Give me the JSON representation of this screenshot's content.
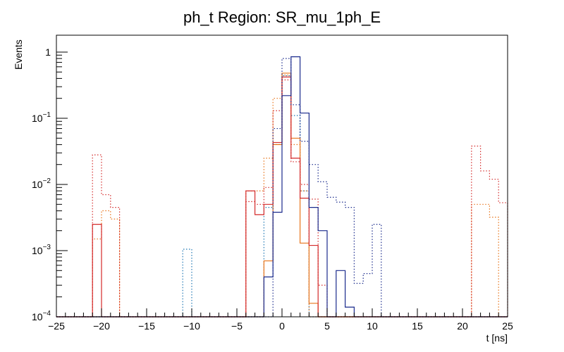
{
  "chart_data": {
    "type": "step-histogram",
    "title": "ph_t Region: SR_mu_1ph_E",
    "xlabel": "t [ns]",
    "ylabel": "Events",
    "xlim": [
      -25,
      25
    ],
    "ylim": [
      0.0001,
      1.8
    ],
    "yscale": "log",
    "bin_width": 1,
    "grid": false,
    "legend": "none",
    "x_ticks": [
      "−25",
      "−20",
      "−15",
      "−10",
      "−5",
      "0",
      "5",
      "10",
      "15",
      "20",
      "25"
    ],
    "y_ticks": [
      {
        "base": "10",
        "exp": "−4",
        "value": 0.0001
      },
      {
        "base": "10",
        "exp": "−3",
        "value": 0.001
      },
      {
        "base": "10",
        "exp": "−2",
        "value": 0.01
      },
      {
        "base": "10",
        "exp": "−1",
        "value": 0.1
      },
      {
        "base": "1",
        "exp": "",
        "value": 1
      }
    ],
    "series": [
      {
        "color": "#1f77b4",
        "style": "dotted",
        "bins": [
          [
            -11,
            0.00105
          ],
          [
            -2,
            0.0045
          ],
          [
            -1,
            0.04
          ],
          [
            0,
            0.44
          ],
          [
            1,
            0.11
          ],
          [
            2,
            0.008
          ]
        ]
      },
      {
        "color": "#e8741a",
        "style": "dotted",
        "bins": [
          [
            -21,
            0.0015
          ],
          [
            -20,
            0.004
          ],
          [
            -19,
            0.003
          ],
          [
            -4,
            0.008
          ],
          [
            -3,
            0.008
          ],
          [
            -2,
            0.025
          ],
          [
            -1,
            0.2
          ],
          [
            0,
            0.45
          ],
          [
            1,
            0.04
          ],
          [
            2,
            0.008
          ],
          [
            21,
            0.005
          ],
          [
            22,
            0.005
          ],
          [
            23,
            0.0032
          ]
        ]
      },
      {
        "color": "#e8741a",
        "style": "solid",
        "bins": [
          [
            -2,
            0.0007
          ],
          [
            -1,
            0.04
          ],
          [
            0,
            0.48
          ],
          [
            1,
            0.05
          ],
          [
            2,
            0.0013
          ],
          [
            3,
            0.00016
          ]
        ]
      },
      {
        "color": "#d42a2a",
        "style": "dotted",
        "bins": [
          [
            -21,
            0.028
          ],
          [
            -20,
            0.007
          ],
          [
            -19,
            0.0045
          ],
          [
            -4,
            0.0055
          ],
          [
            -3,
            0.005
          ],
          [
            -2,
            0.009
          ],
          [
            -1,
            0.13
          ],
          [
            0,
            0.38
          ],
          [
            1,
            0.022
          ],
          [
            2,
            0.01
          ],
          [
            3,
            0.006
          ],
          [
            4,
            0.0003
          ],
          [
            21,
            0.038
          ],
          [
            22,
            0.016
          ],
          [
            23,
            0.012
          ],
          [
            24,
            0.0053
          ]
        ]
      },
      {
        "color": "#d42a2a",
        "style": "solid",
        "bins": [
          [
            -21,
            0.0025
          ],
          [
            -4,
            0.008
          ],
          [
            -3,
            0.0035
          ],
          [
            -2,
            0.005
          ],
          [
            -1,
            0.043
          ],
          [
            0,
            0.42
          ],
          [
            1,
            0.025
          ],
          [
            2,
            0.0062
          ],
          [
            3,
            0.0012
          ]
        ]
      },
      {
        "color": "#1a2a8c",
        "style": "dotted",
        "bins": [
          [
            -1,
            0.07
          ],
          [
            0,
            0.8
          ],
          [
            1,
            0.16
          ],
          [
            2,
            0.045
          ],
          [
            3,
            0.02
          ],
          [
            4,
            0.011
          ],
          [
            5,
            0.0064
          ],
          [
            6,
            0.0054
          ],
          [
            7,
            0.0045
          ],
          [
            8,
            0.00032
          ],
          [
            9,
            0.00045
          ],
          [
            10,
            0.0025
          ]
        ]
      },
      {
        "color": "#1a2a8c",
        "style": "solid",
        "bins": [
          [
            -2,
            0.0004
          ],
          [
            -1,
            0.0038
          ],
          [
            0,
            0.22
          ],
          [
            1,
            0.85
          ],
          [
            2,
            0.12
          ],
          [
            3,
            0.0045
          ],
          [
            4,
            0.002
          ],
          [
            6,
            0.0005
          ],
          [
            7,
            0.00014
          ]
        ]
      }
    ]
  }
}
